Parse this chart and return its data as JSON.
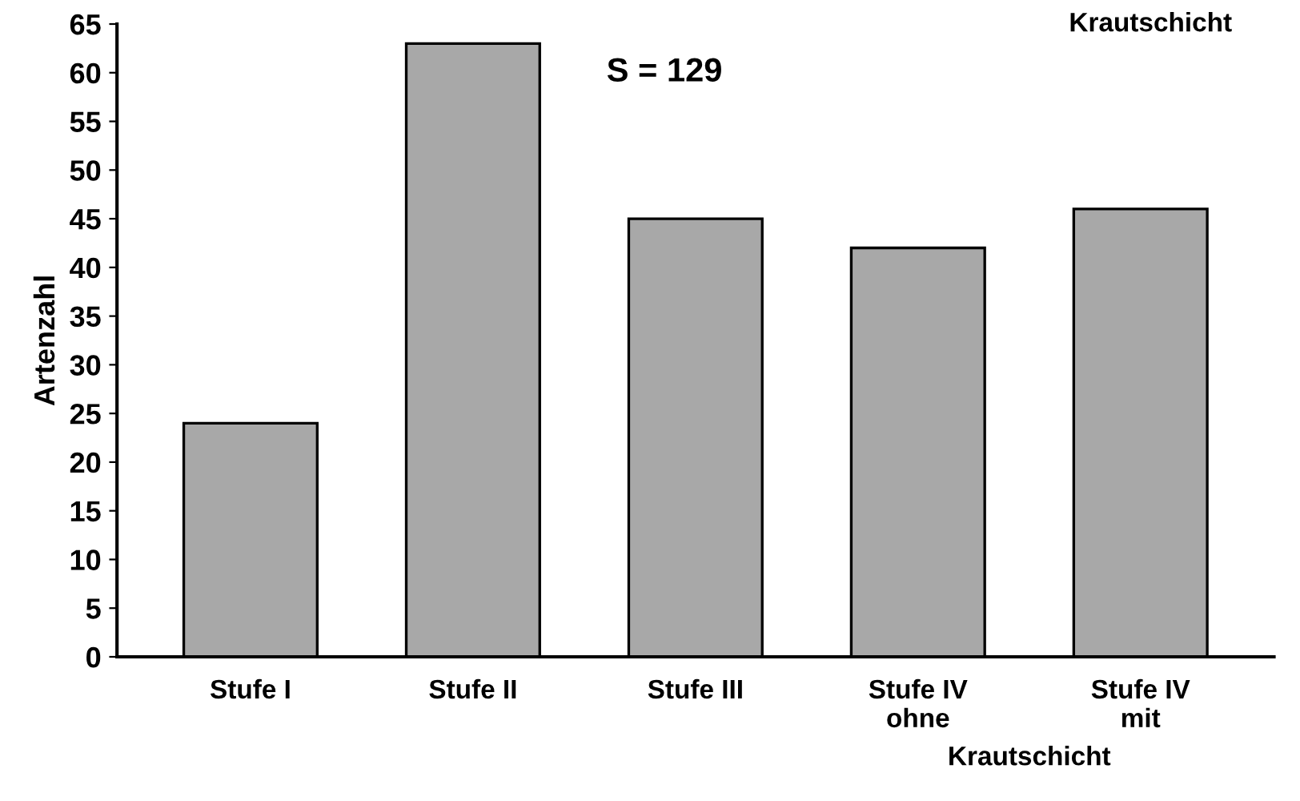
{
  "chart_data": {
    "type": "bar",
    "title": "Krautschicht",
    "ylabel": "Artenzahl",
    "categories": [
      "Stufe I",
      "Stufe II",
      "Stufe III",
      "Stufe IV\nohne",
      "Stufe IV\nmit"
    ],
    "values": [
      24,
      63,
      45,
      42,
      46
    ],
    "color": "#a8a8a8",
    "ylim": [
      0,
      65
    ],
    "yticks": [
      0,
      5,
      10,
      15,
      20,
      25,
      30,
      35,
      40,
      45,
      50,
      55,
      60,
      65
    ],
    "grid": false,
    "annotations": [
      "S = 129",
      "Krautschicht"
    ]
  }
}
